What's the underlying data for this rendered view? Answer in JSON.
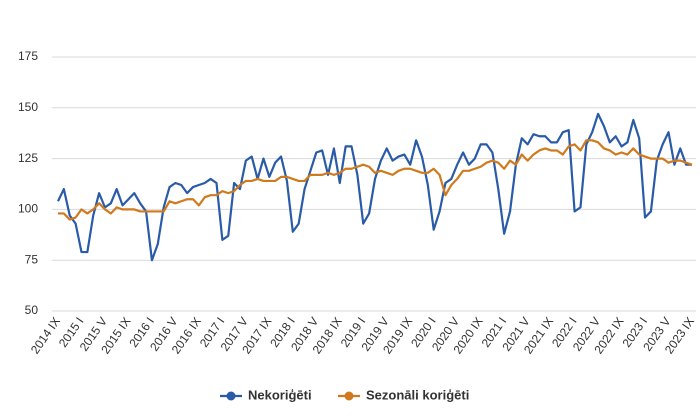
{
  "chart_data": {
    "type": "line",
    "categories": [
      "2014 IX",
      null,
      null,
      null,
      "2015 I",
      null,
      null,
      null,
      "2015 V",
      null,
      null,
      null,
      "2015 IX",
      null,
      null,
      null,
      "2016 I",
      null,
      null,
      null,
      "2016 V",
      null,
      null,
      null,
      "2016 IX",
      null,
      null,
      null,
      "2017 I",
      null,
      null,
      null,
      "2017 V",
      null,
      null,
      null,
      "2017 IX",
      null,
      null,
      null,
      "2018 I",
      null,
      null,
      null,
      "2018 V",
      null,
      null,
      null,
      "2018 IX",
      null,
      null,
      null,
      "2019 I",
      null,
      null,
      null,
      "2019 V",
      null,
      null,
      null,
      "2019 IX",
      null,
      null,
      null,
      "2020 I",
      null,
      null,
      null,
      "2020 V",
      null,
      null,
      null,
      "2020 IX",
      null,
      null,
      null,
      "2021 I",
      null,
      null,
      null,
      "2021 V",
      null,
      null,
      null,
      "2021 IX",
      null,
      null,
      null,
      "2022 I",
      null,
      null,
      null,
      "2022 V",
      null,
      null,
      null,
      "2022 IX",
      null,
      null,
      null,
      "2023 I",
      null,
      null,
      null,
      "2023 V",
      null,
      null,
      null,
      "2023 IX"
    ],
    "series": [
      {
        "name": "Nekoriģēti",
        "color": "#2a5ba8",
        "values": [
          104,
          110,
          97,
          93,
          79,
          79,
          97,
          108,
          101,
          103,
          110,
          102,
          105,
          108,
          103,
          99,
          75,
          83,
          101,
          111,
          113,
          112,
          108,
          111,
          112,
          113,
          115,
          113,
          85,
          87,
          113,
          110,
          124,
          126,
          115,
          125,
          116,
          123,
          126,
          114,
          89,
          93,
          110,
          119,
          128,
          129,
          117,
          130,
          113,
          131,
          131,
          117,
          93,
          98,
          115,
          124,
          130,
          124,
          126,
          127,
          122,
          134,
          126,
          112,
          90,
          99,
          113,
          115,
          122,
          128,
          122,
          125,
          132,
          132,
          128,
          110,
          88,
          99,
          122,
          135,
          132,
          137,
          136,
          136,
          133,
          133,
          138,
          139,
          99,
          101,
          132,
          138,
          147,
          141,
          133,
          136,
          131,
          133,
          144,
          135,
          96,
          99,
          124,
          132,
          138,
          122,
          130,
          122,
          122
        ]
      },
      {
        "name": "Sezonāli koriģēti",
        "color": "#d07a1e",
        "values": [
          98,
          98,
          95,
          96,
          100,
          98,
          100,
          103,
          100,
          98,
          101,
          100,
          100,
          100,
          99,
          99,
          99,
          99,
          99,
          104,
          103,
          104,
          105,
          105,
          102,
          106,
          107,
          107,
          109,
          108,
          109,
          112,
          114,
          114,
          115,
          114,
          114,
          114,
          116,
          116,
          115,
          114,
          114,
          117,
          117,
          117,
          118,
          117,
          118,
          120,
          120,
          121,
          122,
          121,
          118,
          119,
          118,
          117,
          119,
          120,
          120,
          119,
          118,
          118,
          120,
          117,
          107,
          112,
          115,
          119,
          119,
          120,
          121,
          123,
          124,
          123,
          120,
          124,
          122,
          127,
          124,
          127,
          129,
          130,
          129,
          129,
          127,
          131,
          132,
          129,
          134,
          134,
          133,
          130,
          129,
          127,
          128,
          127,
          130,
          127,
          126,
          125,
          125,
          125,
          123,
          124,
          124,
          123,
          122
        ]
      }
    ],
    "ylim": [
      50,
      175
    ],
    "yticks": [
      50,
      75,
      100,
      125,
      150,
      175
    ],
    "grid": true,
    "legend": "bottom"
  }
}
